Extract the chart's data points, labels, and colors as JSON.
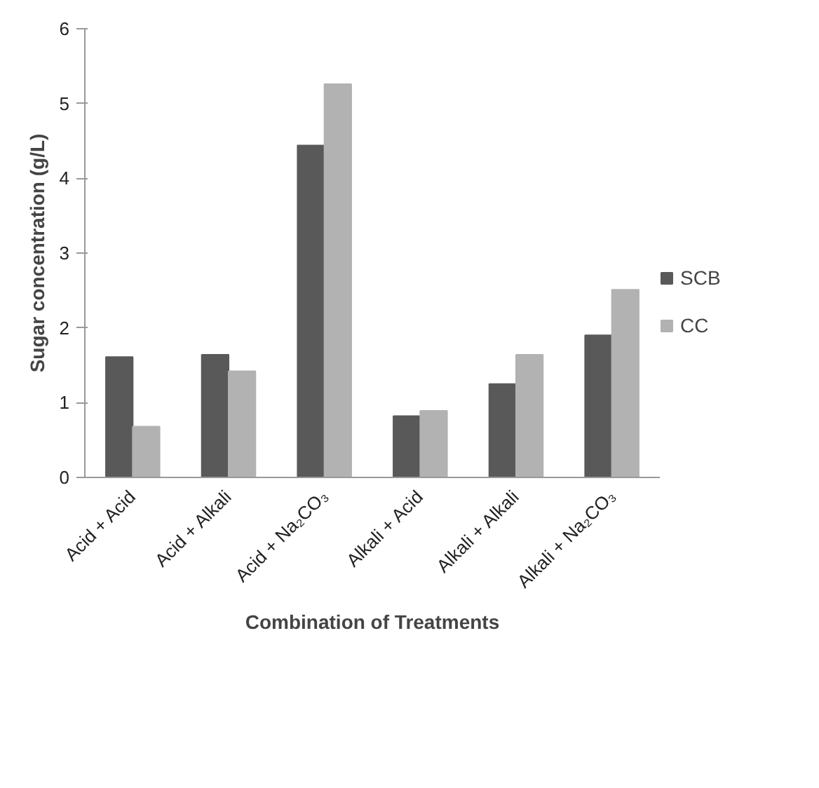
{
  "chart_data": {
    "type": "bar",
    "xlabel": "Combination of Treatments",
    "ylabel": "Sugar concentration (g/L)",
    "categories": [
      "Acid + Acid",
      "Acid + Alkali",
      "Acid + Na₂CO₃",
      "Alkali + Acid",
      "Alkali + Alkali",
      "Alkali + Na₂CO₃"
    ],
    "series": [
      {
        "name": "SCB",
        "color": "#595959",
        "values": [
          1.61,
          1.64,
          4.44,
          0.82,
          1.25,
          1.9
        ]
      },
      {
        "name": "CC",
        "color": "#b2b2b2",
        "values": [
          0.68,
          1.42,
          5.26,
          0.89,
          1.64,
          2.51
        ]
      }
    ],
    "ylim": [
      0,
      6
    ],
    "yticks": [
      0,
      1,
      2,
      3,
      4,
      5,
      6
    ],
    "grid": false,
    "legend": "right"
  }
}
